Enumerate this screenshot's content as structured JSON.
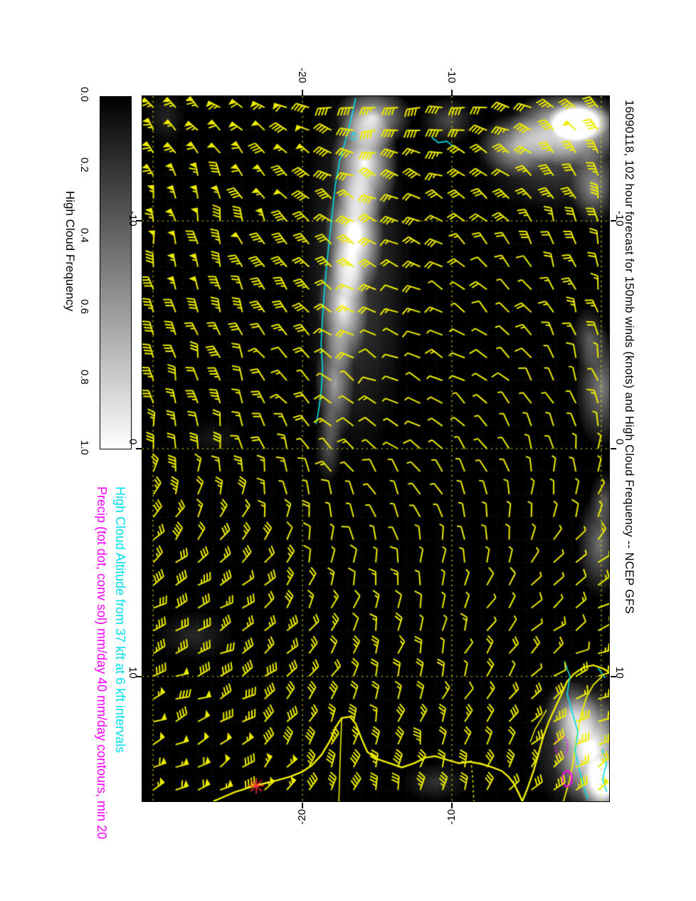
{
  "title": "16090118, 102 hour forecast for 150mb winds (knots) and High Cloud Frequency -- NCEP GFS",
  "captions": {
    "cloud_altitude": "High Cloud Altitude from 37 kft at 6 kft intervals",
    "precip": "Precip (tot dot, conv sol) mm/day 40 mm/day contours, min 20"
  },
  "colorbar": {
    "label": "High Cloud Frequency",
    "ticks": [
      "0.0",
      "0.2",
      "0.4",
      "0.6",
      "0.8",
      "1.0"
    ],
    "min_color": "#000000",
    "max_color": "#ffffff"
  },
  "axes": {
    "x_ticks": [
      {
        "label": "-20",
        "pos": 0.343
      },
      {
        "label": "-10",
        "pos": 0.663
      }
    ],
    "y_ticks": [
      {
        "label": "-10",
        "pos": 0.177
      },
      {
        "label": "0",
        "pos": 0.5
      },
      {
        "label": "10",
        "pos": 0.823
      }
    ]
  },
  "colors": {
    "page": "#ffffff",
    "background": "#000000",
    "barb": "#eded00",
    "coast": "#f0f000",
    "grid_major": "#e0e000",
    "grid_minor": "rgba(200,200,200,0.22)",
    "cloud_altitude_contour": "#00e0e8",
    "precip_contour": "#ff00ff",
    "marker": "#ff3030",
    "caption_cyan": "#00dff0",
    "caption_magenta": "#ff00ff",
    "text": "#000000"
  },
  "chart_data": {
    "type": "heatmap",
    "title": "16090118, 102 hour forecast for 150mb winds (knots) and High Cloud Frequency -- NCEP GFS",
    "model": "NCEP GFS",
    "run": "16090118",
    "forecast_hours": 102,
    "level": "150mb",
    "field": "High Cloud Frequency (grayscale 0.0-1.0) with 150mb wind barbs (knots)",
    "x_tick_labels": [
      "-20",
      "-10"
    ],
    "y_tick_labels": [
      "-10",
      "0",
      "10"
    ],
    "colorbar_ticks": [
      "0.0",
      "0.2",
      "0.4",
      "0.6",
      "0.8",
      "1.0"
    ],
    "contour_overlays": [
      "High Cloud Altitude from 37 kft at 6 kft intervals (cyan)",
      "Precip 40 mm/day contours, min 20 (magenta)"
    ],
    "grid_lines": {
      "x": [
        0.023,
        0.343,
        0.663,
        0.983
      ],
      "y": [
        0.177,
        0.5,
        0.823
      ]
    },
    "graticule": {
      "offset_x": 15,
      "step_x": 21,
      "offset_y": 15,
      "step_y": 32
    },
    "barb_grid": {
      "cols": 21,
      "rows": 31,
      "staff_len": 19,
      "seed": 11
    },
    "cloud_blobs": [
      {
        "x": 0.495,
        "y": 0.03,
        "rx": 0.084,
        "ry": 0.045,
        "a": 0.75
      },
      {
        "x": 0.476,
        "y": 0.096,
        "rx": 0.073,
        "ry": 0.081,
        "a": 0.9
      },
      {
        "x": 0.454,
        "y": 0.197,
        "rx": 0.064,
        "ry": 0.091,
        "a": 0.95
      },
      {
        "x": 0.43,
        "y": 0.298,
        "rx": 0.055,
        "ry": 0.091,
        "a": 0.8
      },
      {
        "x": 0.412,
        "y": 0.409,
        "rx": 0.043,
        "ry": 0.086,
        "a": 0.55
      },
      {
        "x": 0.399,
        "y": 0.495,
        "rx": 0.03,
        "ry": 0.056,
        "a": 0.35
      },
      {
        "x": 0.457,
        "y": 0.247,
        "rx": 0.122,
        "ry": 0.283,
        "a": 0.28
      },
      {
        "x": 0.915,
        "y": 0.045,
        "rx": 0.13,
        "ry": 0.056,
        "a": 0.9
      },
      {
        "x": 0.937,
        "y": 0.035,
        "rx": 0.069,
        "ry": 0.03,
        "a": 1.0
      },
      {
        "x": 0.8,
        "y": 0.071,
        "rx": 0.084,
        "ry": 0.045,
        "a": 0.55
      },
      {
        "x": 0.968,
        "y": 0.131,
        "rx": 0.053,
        "ry": 0.056,
        "a": 0.5
      },
      {
        "x": 0.884,
        "y": 0.081,
        "rx": 0.175,
        "ry": 0.086,
        "a": 0.33
      },
      {
        "x": 0.655,
        "y": 0.035,
        "rx": 0.061,
        "ry": 0.035,
        "a": 0.3
      },
      {
        "x": 0.983,
        "y": 0.414,
        "rx": 0.058,
        "ry": 0.086,
        "a": 0.5
      },
      {
        "x": 0.957,
        "y": 0.343,
        "rx": 0.04,
        "ry": 0.045,
        "a": 0.35
      },
      {
        "x": 0.979,
        "y": 0.636,
        "rx": 0.049,
        "ry": 0.076,
        "a": 0.45
      },
      {
        "x": 0.991,
        "y": 0.571,
        "rx": 0.034,
        "ry": 0.04,
        "a": 0.3
      },
      {
        "x": 0.963,
        "y": 0.929,
        "rx": 0.084,
        "ry": 0.086,
        "a": 0.8
      },
      {
        "x": 0.991,
        "y": 0.98,
        "rx": 0.053,
        "ry": 0.045,
        "a": 0.95
      },
      {
        "x": 0.918,
        "y": 0.876,
        "rx": 0.058,
        "ry": 0.048,
        "a": 0.5
      },
      {
        "x": 0.942,
        "y": 0.919,
        "rx": 0.114,
        "ry": 0.106,
        "a": 0.38
      },
      {
        "x": 0.11,
        "y": 0.765,
        "rx": 0.088,
        "ry": 0.038,
        "a": 0.16
      },
      {
        "x": 0.049,
        "y": 0.03,
        "rx": 0.046,
        "ry": 0.042,
        "a": 0.15
      },
      {
        "x": 0.628,
        "y": 0.973,
        "rx": 0.073,
        "ry": 0.028,
        "a": 0.2
      },
      {
        "x": 0.152,
        "y": 0.485,
        "rx": 0.069,
        "ry": 0.028,
        "a": 0.1
      }
    ],
    "coastlines": [
      {
        "w": 2.4,
        "points": [
          [
            0.152,
            1.0
          ],
          [
            0.198,
            0.987
          ],
          [
            0.241,
            0.978
          ],
          [
            0.284,
            0.971
          ],
          [
            0.317,
            0.965
          ],
          [
            0.343,
            0.958
          ],
          [
            0.363,
            0.949
          ],
          [
            0.384,
            0.934
          ],
          [
            0.402,
            0.914
          ],
          [
            0.415,
            0.894
          ],
          [
            0.427,
            0.882
          ],
          [
            0.445,
            0.88
          ],
          [
            0.457,
            0.89
          ],
          [
            0.47,
            0.912
          ],
          [
            0.482,
            0.93
          ],
          [
            0.503,
            0.94
          ],
          [
            0.53,
            0.946
          ],
          [
            0.556,
            0.952
          ],
          [
            0.582,
            0.946
          ],
          [
            0.607,
            0.938
          ],
          [
            0.628,
            0.936
          ],
          [
            0.652,
            0.941
          ],
          [
            0.678,
            0.946
          ],
          [
            0.701,
            0.944
          ],
          [
            0.726,
            0.947
          ],
          [
            0.75,
            0.952
          ],
          [
            0.77,
            0.957
          ],
          [
            0.784,
            0.965
          ],
          [
            0.796,
            0.975
          ],
          [
            0.805,
            0.987
          ],
          [
            0.814,
            1.0
          ]
        ]
      },
      {
        "w": 2.4,
        "points": [
          [
            0.814,
            1.0
          ],
          [
            0.826,
            0.98
          ],
          [
            0.838,
            0.957
          ],
          [
            0.849,
            0.932
          ],
          [
            0.858,
            0.91
          ],
          [
            0.87,
            0.888
          ],
          [
            0.883,
            0.869
          ],
          [
            0.898,
            0.848
          ],
          [
            0.91,
            0.83
          ],
          [
            0.925,
            0.819
          ],
          [
            0.945,
            0.81
          ],
          [
            0.966,
            0.807
          ],
          [
            0.988,
            0.812
          ],
          [
            1.0,
            0.817
          ]
        ]
      },
      {
        "w": 1.8,
        "points": [
          [
            0.902,
            1.0
          ],
          [
            0.915,
            0.971
          ],
          [
            0.924,
            0.94
          ],
          [
            0.93,
            0.91
          ],
          [
            0.939,
            0.88
          ],
          [
            0.951,
            0.853
          ],
          [
            0.966,
            0.835
          ],
          [
            0.985,
            0.823
          ]
        ]
      },
      {
        "w": 1.6,
        "points": [
          [
            0.427,
            0.882
          ],
          [
            0.424,
            0.934
          ],
          [
            0.421,
            1.0
          ]
        ]
      },
      {
        "w": 1.6,
        "dash": true,
        "points": [
          [
            0.704,
            0.942
          ],
          [
            0.708,
            0.97
          ],
          [
            0.71,
            1.0
          ]
        ]
      },
      {
        "w": 1.5,
        "points": [
          [
            0.831,
            0.916
          ],
          [
            0.841,
            0.898
          ],
          [
            0.854,
            0.884
          ],
          [
            0.866,
            0.87
          ]
        ]
      }
    ],
    "cloud_altitude_contours": [
      [
        [
          0.457,
          0.003
        ],
        [
          0.448,
          0.03
        ],
        [
          0.436,
          0.061
        ],
        [
          0.422,
          0.094
        ],
        [
          0.413,
          0.128
        ],
        [
          0.407,
          0.165
        ],
        [
          0.401,
          0.202
        ],
        [
          0.395,
          0.239
        ],
        [
          0.39,
          0.276
        ],
        [
          0.386,
          0.313
        ],
        [
          0.383,
          0.351
        ],
        [
          0.386,
          0.387
        ],
        [
          0.383,
          0.421
        ],
        [
          0.377,
          0.448
        ],
        [
          0.372,
          0.465
        ]
      ],
      [
        [
          0.619,
          0.058
        ],
        [
          0.634,
          0.066
        ],
        [
          0.652,
          0.064
        ],
        [
          0.668,
          0.072
        ]
      ],
      [
        [
          0.904,
          0.801
        ],
        [
          0.916,
          0.823
        ],
        [
          0.91,
          0.848
        ],
        [
          0.921,
          0.874
        ],
        [
          0.933,
          0.902
        ],
        [
          0.927,
          0.929
        ],
        [
          0.936,
          0.955
        ],
        [
          0.945,
          0.978
        ],
        [
          0.954,
          0.997
        ]
      ],
      [
        [
          0.985,
          0.926
        ],
        [
          0.994,
          0.947
        ],
        [
          0.986,
          0.969
        ],
        [
          0.995,
          0.987
        ]
      ],
      [
        [
          0.976,
          0.811
        ],
        [
          0.991,
          0.825
        ]
      ]
    ],
    "contour_label": {
      "text": "43",
      "x": 0.447,
      "y": 0.05
    },
    "precip_contours": [
      {
        "cx": 0.898,
        "cy": 0.922,
        "rx": 0.013,
        "ry": 0.015,
        "dash": true
      },
      {
        "cx": 0.91,
        "cy": 0.968,
        "rx": 0.01,
        "ry": 0.011,
        "dash": false
      }
    ],
    "marker": {
      "x": 0.244,
      "y": 0.978,
      "r": 11
    }
  }
}
